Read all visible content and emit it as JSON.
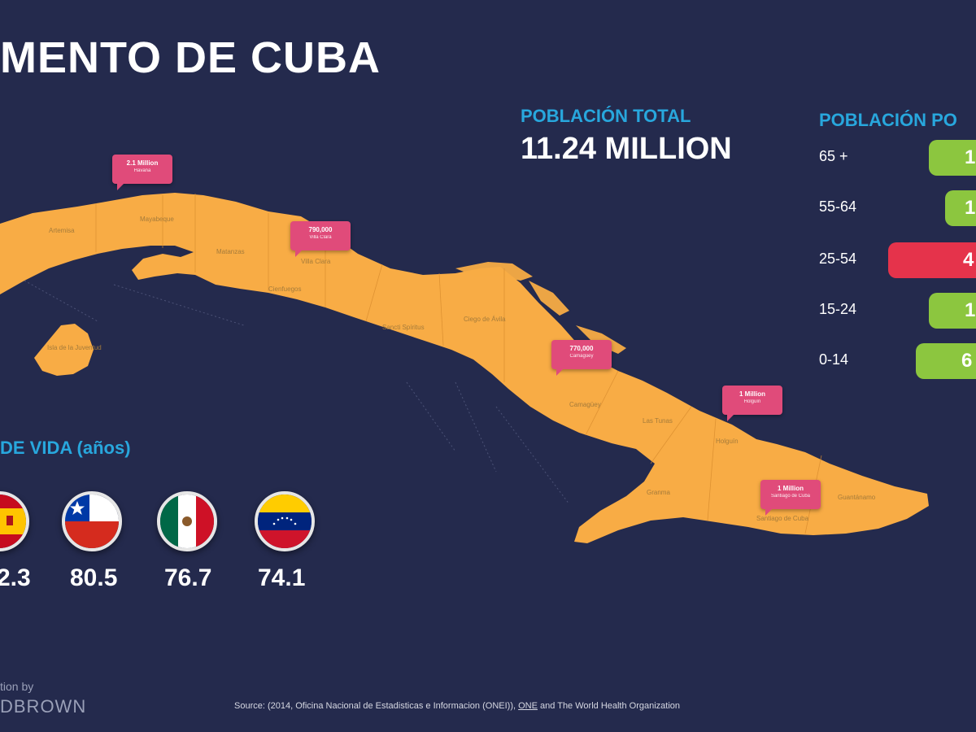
{
  "title": "MENTO DE CUBA",
  "total": {
    "label": "POBLACIÓN TOTAL",
    "value": "11.24 MILLION"
  },
  "age_groups": {
    "title": "POBLACIÓN PO",
    "rows": [
      {
        "label": "65 +",
        "value": "1",
        "color": "#8cc63f"
      },
      {
        "label": "55-64",
        "value": "1",
        "color": "#8cc63f"
      },
      {
        "label": "25-54",
        "value": "4",
        "color": "#e5334b"
      },
      {
        "label": "15-24",
        "value": "1",
        "color": "#8cc63f"
      },
      {
        "label": "0-14",
        "value": "6",
        "color": "#8cc63f"
      }
    ]
  },
  "life_expectancy": {
    "title": "DE VIDA (años)",
    "countries": [
      {
        "flag": "spain-flag-icon",
        "value": "2.3"
      },
      {
        "flag": "chile-flag-icon",
        "value": "80.5"
      },
      {
        "flag": "mexico-flag-icon",
        "value": "76.7"
      },
      {
        "flag": "venezuela-flag-icon",
        "value": "74.1"
      }
    ]
  },
  "map": {
    "region_labels": [
      "Artemisa",
      "Mayabeque",
      "Matanzas",
      "Cienfuegos",
      "Villa Clara",
      "Sancti Spíritus",
      "Ciego de Ávila",
      "Camagüey",
      "Las Tunas",
      "Holguín",
      "Granma",
      "Santiago de Cuba",
      "Guantánamo",
      "Isla de la Juventud"
    ],
    "callouts": [
      {
        "pop": "2.1 Million",
        "city": "Havana"
      },
      {
        "pop": "790,000",
        "city": "Villa Clara"
      },
      {
        "pop": "770,000",
        "city": "Camagüey"
      },
      {
        "pop": "1 Million",
        "city": "Holguín"
      },
      {
        "pop": "1 Million",
        "city": "Santiago de Cuba"
      }
    ]
  },
  "credit": {
    "top": "tion by",
    "brand": "DBROWN"
  },
  "source": {
    "prefix": "Source: (2014, Oficina Nacional de Estadisticas e Informacion (ONEI)), ",
    "link": "ONE",
    "suffix": " and The World Health Organization"
  },
  "colors": {
    "background": "#242a4d",
    "map_fill": "#f8ac45",
    "accent_blue": "#28a7dd",
    "callout_pink": "#e04b7a",
    "bar_green": "#8cc63f",
    "bar_red": "#e5334b"
  }
}
